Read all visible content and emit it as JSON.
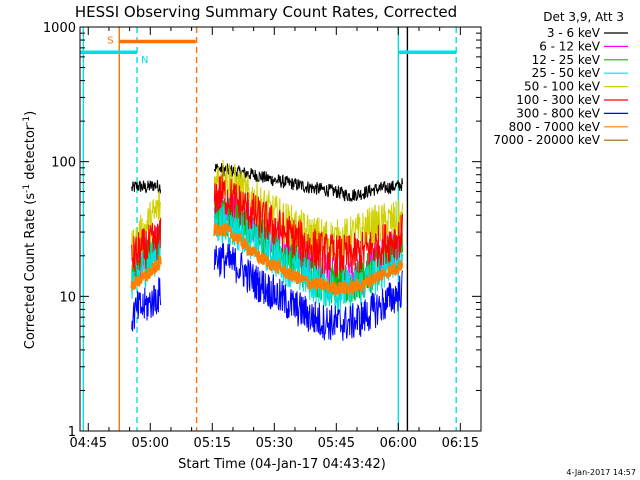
{
  "chart_data": {
    "type": "line",
    "title": "HESSI Observing Summary Count Rates, Corrected",
    "xlabel": "Start Time (04-Jan-17 04:43:42)",
    "ylabel": "Corrected Count Rate (s",
    "ylabel_sup": "-1",
    "ylabel_tail": " detector",
    "ylabel_sup2": "-1",
    "ylabel_end": ")",
    "yscale": "log",
    "ylim": [
      1,
      1000
    ],
    "xlim_minutes": [
      -2,
      95
    ],
    "x_ticks": [
      {
        "label": "04:45",
        "min": 0
      },
      {
        "label": "05:00",
        "min": 15
      },
      {
        "label": "05:15",
        "min": 30
      },
      {
        "label": "05:30",
        "min": 45
      },
      {
        "label": "05:45",
        "min": 60
      },
      {
        "label": "06:00",
        "min": 75
      },
      {
        "label": "06:15",
        "min": 90
      }
    ],
    "y_ticks": [
      {
        "label": "1",
        "value": 1
      },
      {
        "label": "10",
        "value": 10
      },
      {
        "label": "100",
        "value": 100
      },
      {
        "label": "1000",
        "value": 1000
      }
    ],
    "legend_header": "Det 3,9, Att 3",
    "legend_placement": "right",
    "series": [
      {
        "name": "3 - 6 keV",
        "color": "#000000",
        "segments": [
          {
            "x": [
              10.5,
              12,
              14,
              16,
              17.5
            ],
            "y": [
              63,
              66,
              64,
              67,
              65
            ]
          },
          {
            "x": [
              30.5,
              32,
              34,
              36,
              38,
              40,
              42,
              45,
              48,
              51,
              54,
              57,
              60,
              63,
              66,
              69,
              72,
              75,
              76
            ],
            "y": [
              90,
              88,
              86,
              84,
              82,
              80,
              77,
              73,
              70,
              67,
              64,
              62,
              60,
              56,
              58,
              62,
              64,
              66,
              68
            ]
          }
        ]
      },
      {
        "name": "6 - 12 keV",
        "color": "#ff00ff",
        "segments": [
          {
            "x": [
              10.5,
              12,
              14,
              16,
              17.5
            ],
            "y": [
              17,
              19,
              21,
              24,
              28
            ]
          },
          {
            "x": [
              30.5,
              32,
              34,
              36,
              38,
              40,
              42,
              45,
              48,
              51,
              54,
              57,
              60,
              63,
              66,
              69,
              72,
              75,
              76
            ],
            "y": [
              42,
              45,
              44,
              41,
              38,
              35,
              32,
              28,
              24,
              21,
              18,
              16,
              14,
              13,
              14,
              17,
              20,
              23,
              25
            ]
          }
        ]
      },
      {
        "name": "12 - 25 keV",
        "color": "#00c000",
        "segments": [
          {
            "x": [
              10.5,
              12,
              14,
              16,
              17.5
            ],
            "y": [
              15,
              17,
              19,
              22,
              25
            ]
          },
          {
            "x": [
              30.5,
              32,
              34,
              36,
              38,
              40,
              42,
              45,
              48,
              51,
              54,
              57,
              60,
              63,
              66,
              69,
              72,
              75,
              76
            ],
            "y": [
              38,
              40,
              38,
              36,
              33,
              30,
              27,
              23,
              20,
              17,
              15,
              13,
              12,
              12,
              13,
              16,
              19,
              22,
              24
            ]
          }
        ]
      },
      {
        "name": "25 - 50 keV",
        "color": "#00e0e0",
        "segments": [
          {
            "x": [
              10.5,
              12,
              14,
              16,
              17.5
            ],
            "y": [
              13,
              15,
              17,
              20,
              22
            ]
          },
          {
            "x": [
              30.5,
              32,
              34,
              36,
              38,
              40,
              42,
              45,
              48,
              51,
              54,
              57,
              60,
              63,
              66,
              69,
              72,
              75,
              76
            ],
            "y": [
              33,
              35,
              33,
              31,
              29,
              26,
              23,
              20,
              17,
              15,
              13,
              12,
              11,
              11,
              12,
              14,
              17,
              20,
              22
            ]
          }
        ]
      },
      {
        "name": "50 - 100 keV",
        "color": "#d0d000",
        "segments": [
          {
            "x": [
              10.5,
              12,
              14,
              16,
              17.5
            ],
            "y": [
              22,
              26,
              32,
              40,
              48
            ]
          },
          {
            "x": [
              30.5,
              32,
              34,
              36,
              38,
              40,
              42,
              45,
              48,
              51,
              54,
              57,
              60,
              63,
              66,
              69,
              72,
              75,
              76
            ],
            "y": [
              70,
              78,
              74,
              65,
              58,
              52,
              46,
              40,
              35,
              31,
              28,
              27,
              26,
              27,
              30,
              33,
              35,
              36,
              37
            ]
          }
        ]
      },
      {
        "name": "100 - 300 keV",
        "color": "#ff0000",
        "segments": [
          {
            "x": [
              10.5,
              12,
              14,
              16,
              17.5
            ],
            "y": [
              19,
              21,
              23,
              25,
              27
            ]
          },
          {
            "x": [
              30.5,
              32,
              34,
              36,
              38,
              40,
              42,
              45,
              48,
              51,
              54,
              57,
              60,
              63,
              66,
              69,
              72,
              75,
              76
            ],
            "y": [
              55,
              58,
              55,
              50,
              45,
              41,
              37,
              33,
              29,
              26,
              23,
              21,
              20,
              20,
              21,
              23,
              25,
              27,
              29
            ]
          }
        ]
      },
      {
        "name": "300 - 800 keV",
        "color": "#0000ff",
        "segments": [
          {
            "x": [
              10.5,
              12,
              14,
              16,
              17.5
            ],
            "y": [
              7,
              8,
              8.5,
              9.5,
              10.5
            ]
          },
          {
            "x": [
              30.5,
              32,
              34,
              36,
              38,
              40,
              42,
              45,
              48,
              51,
              54,
              57,
              60,
              63,
              66,
              69,
              72,
              75,
              76
            ],
            "y": [
              20,
              19,
              18,
              17,
              15,
              13,
              12,
              10.5,
              9,
              8,
              7,
              6.5,
              6.3,
              6.3,
              6.8,
              7.8,
              9,
              10.5,
              11.5
            ]
          }
        ]
      },
      {
        "name": "800 - 7000 keV",
        "color": "#ff8000",
        "segments": [
          {
            "x": [
              10.5,
              12,
              14,
              16,
              17.5
            ],
            "y": [
              12,
              13,
              14,
              16,
              18
            ]
          },
          {
            "x": [
              30.5,
              32,
              34,
              36,
              38,
              40,
              42,
              45,
              48,
              51,
              54,
              57,
              60,
              63,
              66,
              69,
              72,
              75,
              76
            ],
            "y": [
              31,
              32,
              30,
              27,
              24,
              21,
              19,
              17,
              15,
              13.5,
              12.5,
              12,
              11.5,
              11.5,
              12,
              13.5,
              15,
              16.5,
              17.5
            ]
          }
        ]
      },
      {
        "name": "7000 - 20000 keV",
        "color": "#a06000",
        "segments": []
      }
    ],
    "state_bars": [
      {
        "label": "S",
        "color": "#ff7000",
        "start_min": 7.5,
        "end_min": 26,
        "value": 780
      },
      {
        "label": "N",
        "color": "#00e0e0",
        "start_min": -2,
        "end_min": 11.8,
        "value": 650
      },
      {
        "label": "",
        "color": "#00e0e0",
        "start_min": 75,
        "end_min": 89,
        "value": 650
      }
    ],
    "vertical_lines": [
      {
        "min": -1.2,
        "color": "#00e0e0",
        "style": "solid"
      },
      {
        "min": 7.5,
        "color": "#ff7000",
        "style": "solid"
      },
      {
        "min": 11.8,
        "color": "#00e0e0",
        "style": "dashed"
      },
      {
        "min": 26.2,
        "color": "#ff7000",
        "style": "dashed"
      },
      {
        "min": 75,
        "color": "#00e0e0",
        "style": "solid"
      },
      {
        "min": 89,
        "color": "#00e0e0",
        "style": "dashed"
      },
      {
        "min": 77.2,
        "color": "#000000",
        "style": "solid"
      }
    ]
  },
  "footer": {
    "timestamp": "4-Jan-2017 14:57"
  }
}
